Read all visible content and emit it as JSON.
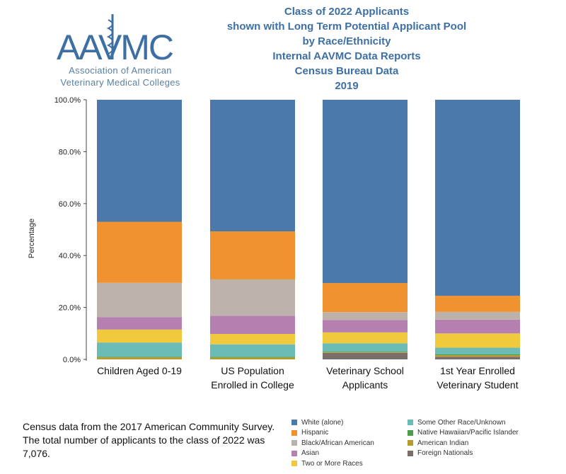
{
  "logo": {
    "wordmark": "AAVMC",
    "tagline_line1": "Association of American",
    "tagline_line2": "Veterinary Medical Colleges"
  },
  "titles": [
    "Class of 2022 Applicants",
    "shown with Long Term Potential Applicant Pool",
    "by Race/Ethnicity",
    "Internal AAVMC Data Reports",
    "Census Bureau Data",
    "2019"
  ],
  "note": "Census data from the 2017 American Community Survey. The total number of applicants to the class of 2022 was 7,076.",
  "chart_data": {
    "type": "bar",
    "stacked": true,
    "percent": true,
    "ylabel": "Percentage",
    "ylim": [
      0,
      100
    ],
    "yticks": [
      "0.0%",
      "20.0%",
      "40.0%",
      "60.0%",
      "80.0%",
      "100.0%"
    ],
    "ytick_values": [
      0,
      20,
      40,
      60,
      80,
      100
    ],
    "categories": [
      [
        "Children Aged 0-19"
      ],
      [
        "US Population",
        "Enrolled in College"
      ],
      [
        "Veterinary School",
        "Applicants"
      ],
      [
        "1st Year Enrolled",
        "Veterinary Student"
      ]
    ],
    "series": [
      {
        "name": "Foreign Nationals",
        "color": "#7a6e6a",
        "values": [
          0.0,
          0.0,
          2.5,
          1.0
        ]
      },
      {
        "name": "American Indian",
        "color": "#b99a2e",
        "values": [
          0.8,
          0.7,
          0.3,
          0.6
        ]
      },
      {
        "name": "Native Hawaiian/Pacific Islander",
        "color": "#4d9e4a",
        "values": [
          0.2,
          0.3,
          0.2,
          0.4
        ]
      },
      {
        "name": "Some Other Race/Unknown",
        "color": "#6bbcb6",
        "values": [
          5.5,
          4.8,
          3.2,
          2.5
        ]
      },
      {
        "name": "Two or More Races",
        "color": "#f0c93c",
        "values": [
          5.0,
          4.0,
          4.2,
          5.5
        ]
      },
      {
        "name": "Asian",
        "color": "#b57fb0",
        "values": [
          4.8,
          7.0,
          4.8,
          5.3
        ]
      },
      {
        "name": "Black/African American",
        "color": "#bdb1ac",
        "values": [
          13.2,
          14.0,
          3.0,
          3.0
        ]
      },
      {
        "name": "Hispanic",
        "color": "#f0922f",
        "values": [
          23.5,
          18.5,
          11.2,
          6.2
        ]
      },
      {
        "name": "White (alone)",
        "color": "#4b7aaa",
        "values": [
          47.0,
          50.7,
          70.6,
          75.5
        ]
      }
    ],
    "legend_left": [
      {
        "label": "White (alone)",
        "color": "#4b7aaa"
      },
      {
        "label": "Hispanic",
        "color": "#f0922f"
      },
      {
        "label": "Black/African American",
        "color": "#bdb1ac"
      },
      {
        "label": "Asian",
        "color": "#b57fb0"
      },
      {
        "label": "Two or More Races",
        "color": "#f0c93c"
      }
    ],
    "legend_right": [
      {
        "label": "Some Other Race/Unknown",
        "color": "#6bbcb6"
      },
      {
        "label": "Native Hawaiian/Pacific Islander",
        "color": "#4d9e4a"
      },
      {
        "label": "American Indian",
        "color": "#b99a2e"
      },
      {
        "label": "Foreign Nationals",
        "color": "#7a6e6a"
      }
    ],
    "legend_placement": "bottom-right",
    "grid": false
  }
}
